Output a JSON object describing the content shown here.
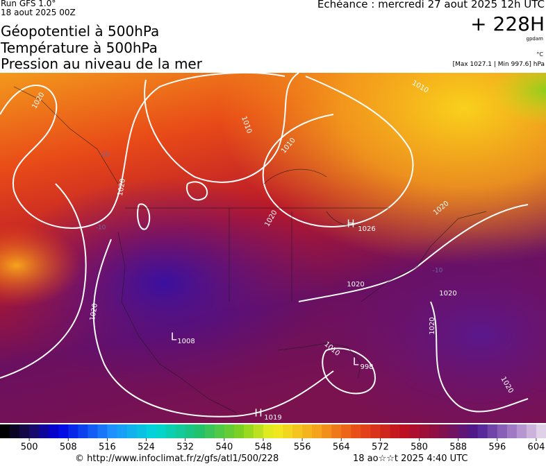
{
  "header": {
    "run": "Run GFS 1.0°",
    "run_date": "18 aout 2025 00Z",
    "titles": [
      "Géopotentiel à 500hPa",
      "Température à 500hPa",
      "Pression au niveau de la mer"
    ],
    "valid": "Echéance : mercredi 27 aout 2025 12h UTC",
    "lead": "+ 228H",
    "unit_geo": "gpdam",
    "unit_temp": "°C",
    "pressure_range": "[Max 1027.1 | Min 997.6] hPa"
  },
  "map": {
    "pressure_labels": [
      "1020",
      "1020",
      "1010",
      "1010",
      "1010",
      "1020",
      "1020",
      "1020",
      "1020",
      "1020",
      "1020",
      "1020",
      "1010",
      "H",
      "1026",
      "L",
      "1008",
      "L",
      "998",
      "H",
      "1019"
    ],
    "temperature_labels": [
      "-10",
      "-10",
      "-10"
    ]
  },
  "colorbar": {
    "range": [
      494,
      606
    ],
    "ticks": [
      500,
      508,
      516,
      524,
      532,
      540,
      548,
      556,
      564,
      572,
      580,
      588,
      596,
      604
    ]
  },
  "footer": {
    "source": "© http://www.infoclimat.fr/z/gfs/atl1/500/228",
    "generated": "18 ao☆☆t 2025  4:40 UTC"
  }
}
